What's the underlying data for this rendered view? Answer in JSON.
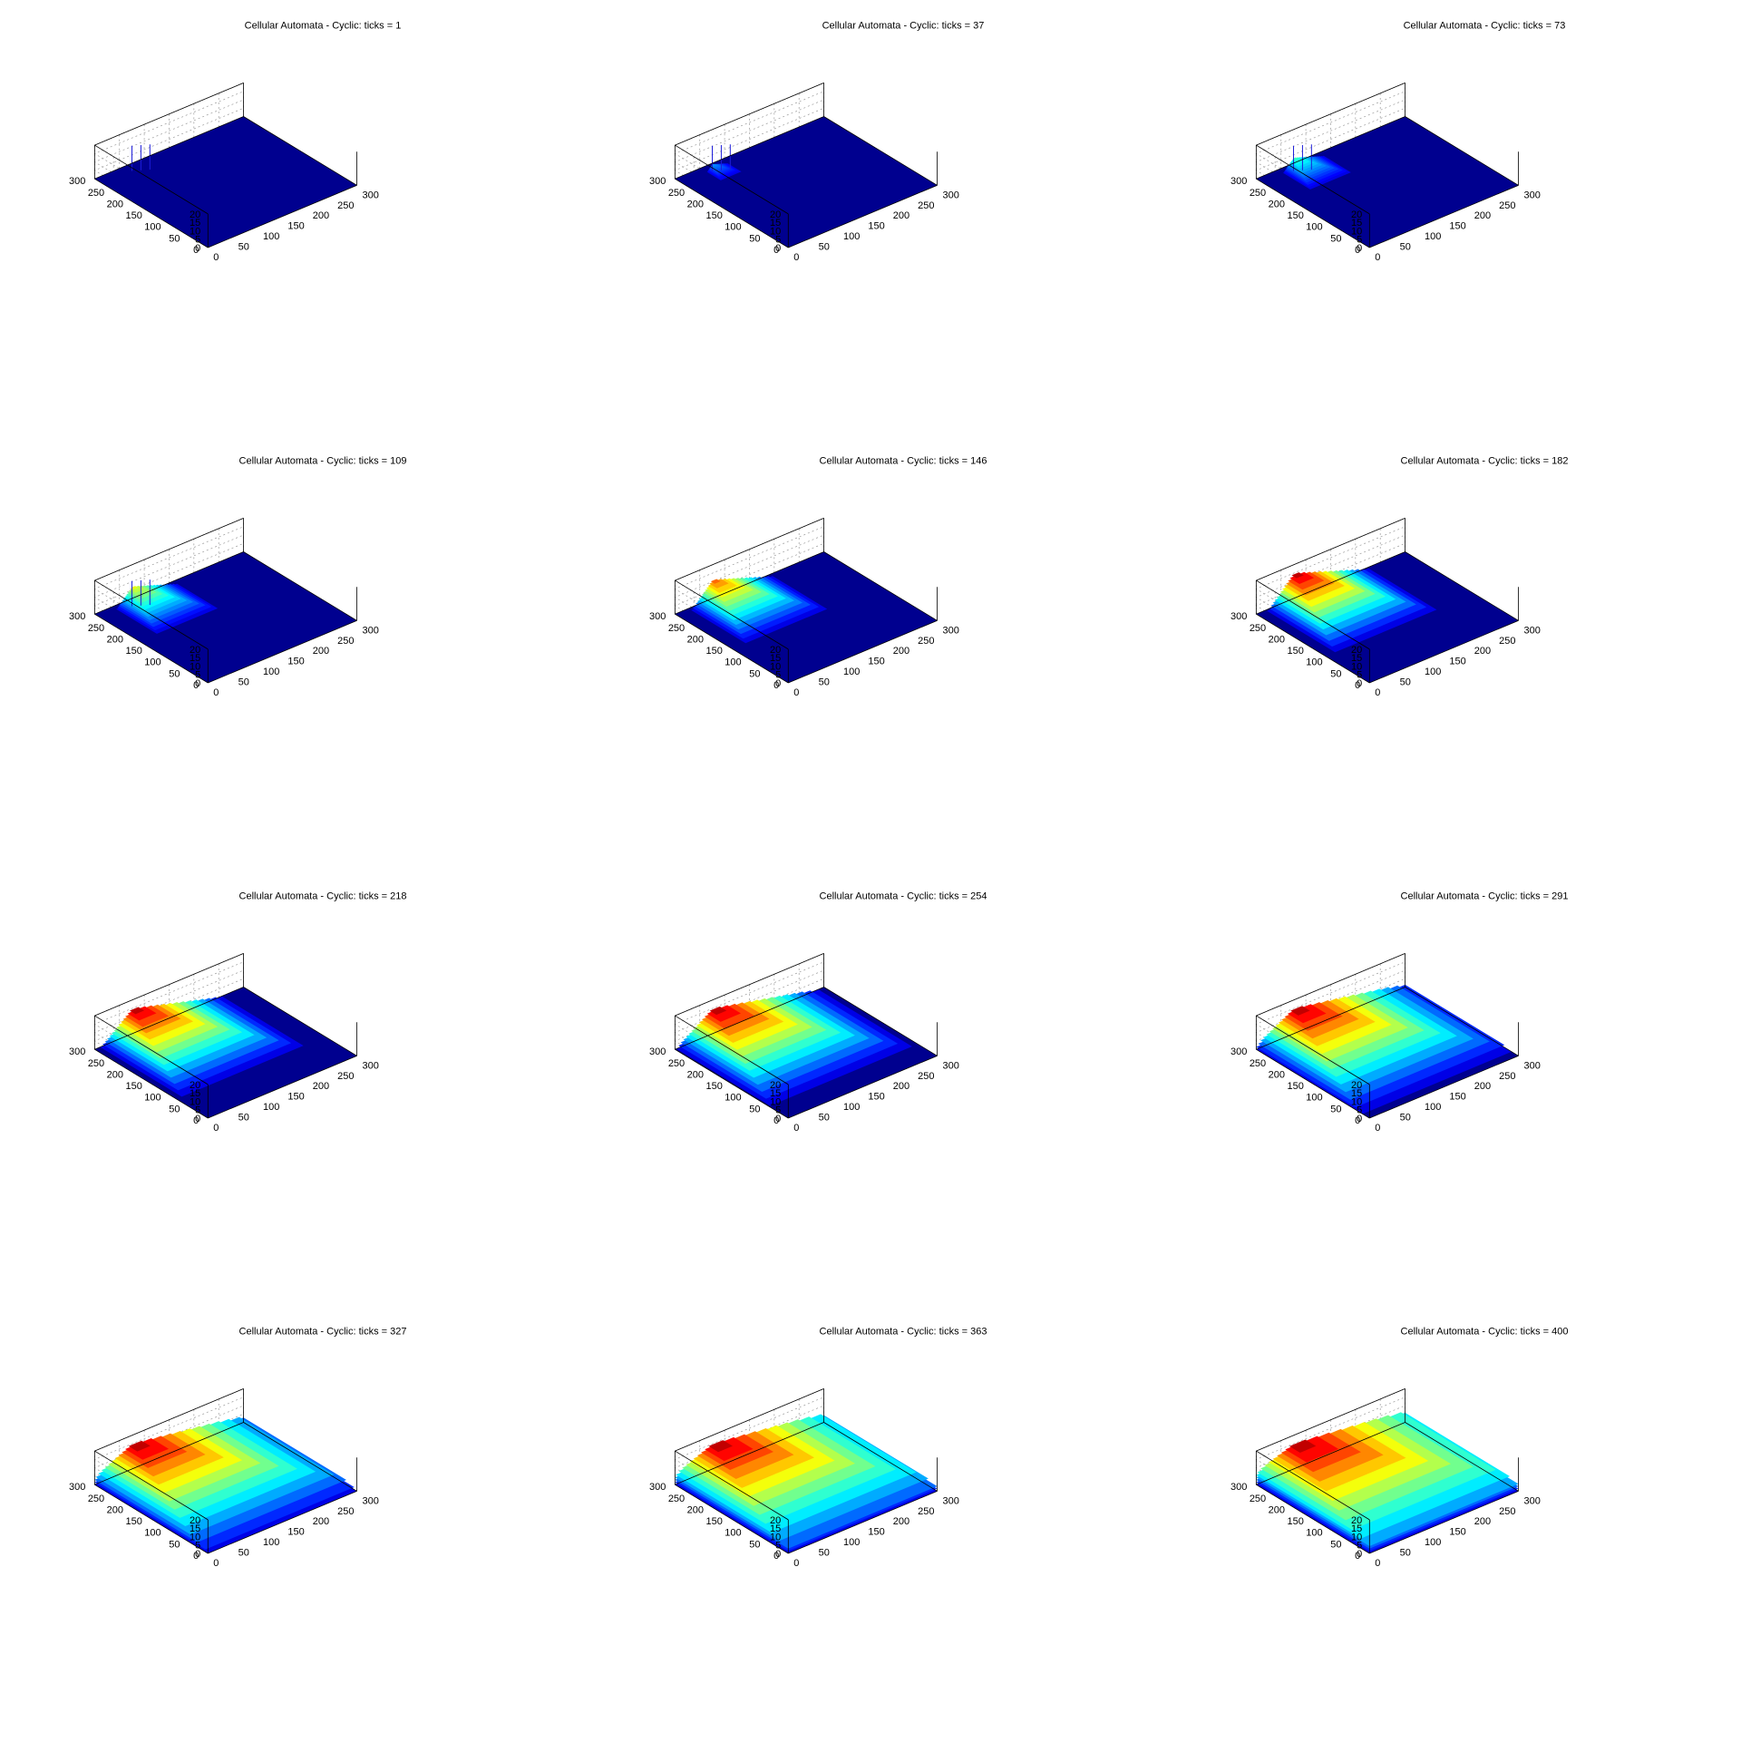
{
  "figure": {
    "panel_count": 12,
    "grid": "3x4"
  },
  "colors": {
    "background": "#ffffff",
    "axis": "#000000",
    "gridline": "#9a9a9a",
    "colormap": "jet",
    "low": "#00008f",
    "high": "#800000",
    "spike": "#1c1cd9"
  },
  "chart_data": [
    {
      "type": "surface",
      "title": "Cellular Automata - Cyclic: ticks = 1",
      "ticks": 1,
      "xlim": [
        0,
        300
      ],
      "ylim": [
        0,
        300
      ],
      "zlim": [
        0,
        20
      ],
      "xticks": [
        0,
        50,
        100,
        150,
        200,
        250,
        300
      ],
      "yticks": [
        0,
        50,
        100,
        150,
        200,
        250,
        300
      ],
      "zticks": [
        0,
        5,
        10,
        15,
        20
      ],
      "grid": true,
      "xlabel": "",
      "ylabel": "",
      "zlabel": ""
    },
    {
      "type": "surface",
      "title": "Cellular Automata - Cyclic: ticks = 37",
      "ticks": 37,
      "xlim": [
        0,
        300
      ],
      "ylim": [
        0,
        300
      ],
      "zlim": [
        0,
        20
      ],
      "xticks": [
        0,
        50,
        100,
        150,
        200,
        250,
        300
      ],
      "yticks": [
        0,
        50,
        100,
        150,
        200,
        250,
        300
      ],
      "zticks": [
        0,
        5,
        10,
        15,
        20
      ],
      "grid": true,
      "xlabel": "",
      "ylabel": "",
      "zlabel": ""
    },
    {
      "type": "surface",
      "title": "Cellular Automata - Cyclic: ticks = 73",
      "ticks": 73,
      "xlim": [
        0,
        300
      ],
      "ylim": [
        0,
        300
      ],
      "zlim": [
        0,
        20
      ],
      "xticks": [
        0,
        50,
        100,
        150,
        200,
        250,
        300
      ],
      "yticks": [
        0,
        50,
        100,
        150,
        200,
        250,
        300
      ],
      "zticks": [
        0,
        5,
        10,
        15,
        20
      ],
      "grid": true,
      "xlabel": "",
      "ylabel": "",
      "zlabel": ""
    },
    {
      "type": "surface",
      "title": "Cellular Automata - Cyclic: ticks = 109",
      "ticks": 109,
      "xlim": [
        0,
        300
      ],
      "ylim": [
        0,
        300
      ],
      "zlim": [
        0,
        20
      ],
      "xticks": [
        0,
        50,
        100,
        150,
        200,
        250,
        300
      ],
      "yticks": [
        0,
        50,
        100,
        150,
        200,
        250,
        300
      ],
      "zticks": [
        0,
        5,
        10,
        15,
        20
      ],
      "grid": true,
      "xlabel": "",
      "ylabel": "",
      "zlabel": ""
    },
    {
      "type": "surface",
      "title": "Cellular Automata - Cyclic: ticks = 146",
      "ticks": 146,
      "xlim": [
        0,
        300
      ],
      "ylim": [
        0,
        300
      ],
      "zlim": [
        0,
        20
      ],
      "xticks": [
        0,
        50,
        100,
        150,
        200,
        250,
        300
      ],
      "yticks": [
        0,
        50,
        100,
        150,
        200,
        250,
        300
      ],
      "zticks": [
        0,
        5,
        10,
        15,
        20
      ],
      "grid": true,
      "xlabel": "",
      "ylabel": "",
      "zlabel": ""
    },
    {
      "type": "surface",
      "title": "Cellular Automata - Cyclic: ticks = 182",
      "ticks": 182,
      "xlim": [
        0,
        300
      ],
      "ylim": [
        0,
        300
      ],
      "zlim": [
        0,
        20
      ],
      "xticks": [
        0,
        50,
        100,
        150,
        200,
        250,
        300
      ],
      "yticks": [
        0,
        50,
        100,
        150,
        200,
        250,
        300
      ],
      "zticks": [
        0,
        5,
        10,
        15,
        20
      ],
      "grid": true,
      "xlabel": "",
      "ylabel": "",
      "zlabel": ""
    },
    {
      "type": "surface",
      "title": "Cellular Automata - Cyclic: ticks = 218",
      "ticks": 218,
      "xlim": [
        0,
        300
      ],
      "ylim": [
        0,
        300
      ],
      "zlim": [
        0,
        20
      ],
      "xticks": [
        0,
        50,
        100,
        150,
        200,
        250,
        300
      ],
      "yticks": [
        0,
        50,
        100,
        150,
        200,
        250,
        300
      ],
      "zticks": [
        0,
        5,
        10,
        15,
        20
      ],
      "grid": true,
      "xlabel": "",
      "ylabel": "",
      "zlabel": ""
    },
    {
      "type": "surface",
      "title": "Cellular Automata - Cyclic: ticks = 254",
      "ticks": 254,
      "xlim": [
        0,
        300
      ],
      "ylim": [
        0,
        300
      ],
      "zlim": [
        0,
        20
      ],
      "xticks": [
        0,
        50,
        100,
        150,
        200,
        250,
        300
      ],
      "yticks": [
        0,
        50,
        100,
        150,
        200,
        250,
        300
      ],
      "zticks": [
        0,
        5,
        10,
        15,
        20
      ],
      "grid": true,
      "xlabel": "",
      "ylabel": "",
      "zlabel": ""
    },
    {
      "type": "surface",
      "title": "Cellular Automata - Cyclic: ticks = 291",
      "ticks": 291,
      "xlim": [
        0,
        300
      ],
      "ylim": [
        0,
        300
      ],
      "zlim": [
        0,
        20
      ],
      "xticks": [
        0,
        50,
        100,
        150,
        200,
        250,
        300
      ],
      "yticks": [
        0,
        50,
        100,
        150,
        200,
        250,
        300
      ],
      "zticks": [
        0,
        5,
        10,
        15,
        20
      ],
      "grid": true,
      "xlabel": "",
      "ylabel": "",
      "zlabel": ""
    },
    {
      "type": "surface",
      "title": "Cellular Automata - Cyclic: ticks = 327",
      "ticks": 327,
      "xlim": [
        0,
        300
      ],
      "ylim": [
        0,
        300
      ],
      "zlim": [
        0,
        20
      ],
      "xticks": [
        0,
        50,
        100,
        150,
        200,
        250,
        300
      ],
      "yticks": [
        0,
        50,
        100,
        150,
        200,
        250,
        300
      ],
      "zticks": [
        0,
        5,
        10,
        15,
        20
      ],
      "grid": true,
      "xlabel": "",
      "ylabel": "",
      "zlabel": ""
    },
    {
      "type": "surface",
      "title": "Cellular Automata - Cyclic: ticks = 363",
      "ticks": 363,
      "xlim": [
        0,
        300
      ],
      "ylim": [
        0,
        300
      ],
      "zlim": [
        0,
        20
      ],
      "xticks": [
        0,
        50,
        100,
        150,
        200,
        250,
        300
      ],
      "yticks": [
        0,
        50,
        100,
        150,
        200,
        250,
        300
      ],
      "zticks": [
        0,
        5,
        10,
        15,
        20
      ],
      "grid": true,
      "xlabel": "",
      "ylabel": "",
      "zlabel": ""
    },
    {
      "type": "surface",
      "title": "Cellular Automata - Cyclic: ticks = 400",
      "ticks": 400,
      "xlim": [
        0,
        300
      ],
      "ylim": [
        0,
        300
      ],
      "zlim": [
        0,
        20
      ],
      "xticks": [
        0,
        50,
        100,
        150,
        200,
        250,
        300
      ],
      "yticks": [
        0,
        50,
        100,
        150,
        200,
        250,
        300
      ],
      "zticks": [
        0,
        5,
        10,
        15,
        20
      ],
      "grid": true,
      "xlabel": "",
      "ylabel": "",
      "zlabel": ""
    }
  ]
}
